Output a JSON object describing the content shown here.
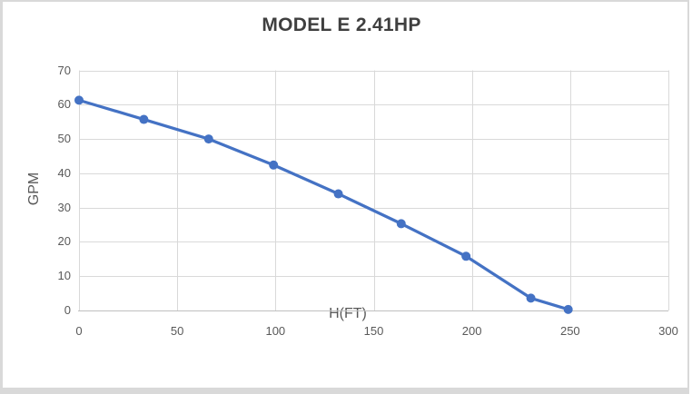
{
  "chart_data": {
    "type": "line",
    "title": "MODEL E 2.41HP",
    "xlabel": "H(FT)",
    "ylabel": "GPM",
    "x": [
      0,
      33,
      66,
      99,
      132,
      164,
      197,
      230,
      249
    ],
    "y": [
      61.3,
      55.7,
      50.0,
      42.4,
      34.0,
      25.3,
      15.8,
      3.6,
      0.3
    ],
    "xlim": [
      0,
      300
    ],
    "ylim": [
      0,
      70
    ],
    "xticks": [
      0,
      50,
      100,
      150,
      200,
      250,
      300
    ],
    "yticks": [
      0,
      10,
      20,
      30,
      40,
      50,
      60,
      70
    ],
    "grid": true,
    "legend": false,
    "marker": "circle",
    "colors": {
      "series": "#4472C4",
      "gridline": "#D9D9D9",
      "axis_line": "#BFBFBF",
      "tick_label": "#595959",
      "title": "#3F3F3F",
      "frame_border": "#D9D9D9",
      "background": "#FFFFFF"
    }
  }
}
